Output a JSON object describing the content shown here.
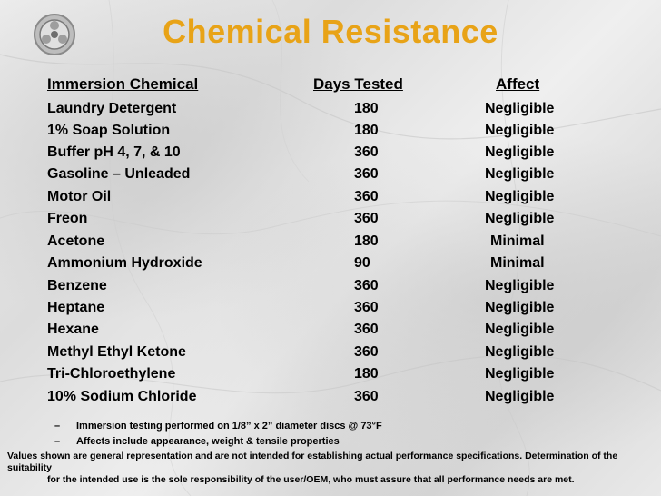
{
  "title": "Chemical Resistance",
  "headers": {
    "chemical": "Immersion Chemical",
    "days": "Days Tested",
    "affect": "Affect"
  },
  "rows": [
    {
      "chemical": "Laundry Detergent",
      "days": "180",
      "affect": "Negligible"
    },
    {
      "chemical": "1% Soap Solution",
      "days": "180",
      "affect": "Negligible"
    },
    {
      "chemical": "Buffer pH 4, 7, & 10",
      "days": "360",
      "affect": "Negligible"
    },
    {
      "chemical": "Gasoline – Unleaded",
      "days": "360",
      "affect": "Negligible"
    },
    {
      "chemical": "Motor Oil",
      "days": "360",
      "affect": "Negligible"
    },
    {
      "chemical": "Freon",
      "days": "360",
      "affect": "Negligible"
    },
    {
      "chemical": "Acetone",
      "days": "180",
      "affect": "Minimal"
    },
    {
      "chemical": "Ammonium Hydroxide",
      "days": "90",
      "affect": "Minimal"
    },
    {
      "chemical": "Benzene",
      "days": "360",
      "affect": "Negligible"
    },
    {
      "chemical": "Heptane",
      "days": "360",
      "affect": "Negligible"
    },
    {
      "chemical": "Hexane",
      "days": "360",
      "affect": "Negligible"
    },
    {
      "chemical": "Methyl Ethyl Ketone",
      "days": "360",
      "affect": "Negligible"
    },
    {
      "chemical": "Tri-Chloroethylene",
      "days": "180",
      "affect": "Negligible"
    },
    {
      "chemical": "10% Sodium Chloride",
      "days": "360",
      "affect": "Negligible"
    }
  ],
  "notes": [
    {
      "dash": "–",
      "text": "Immersion testing performed on 1/8” x 2” diameter discs @ 73°F"
    },
    {
      "dash": "–",
      "text": "Affects include appearance, weight & tensile properties"
    }
  ],
  "disclaimer": {
    "line1": "Values shown are general representation and are not intended for establishing actual performance specifications. Determination of the suitability",
    "line2": "for the intended use is the sole responsibility of the user/OEM, who must assure that all performance needs are met."
  },
  "colors": {
    "title": "#e8a317",
    "text": "#000000",
    "background": "#e4e4e4"
  },
  "icons": {
    "logo": "wheel-logo-icon"
  }
}
